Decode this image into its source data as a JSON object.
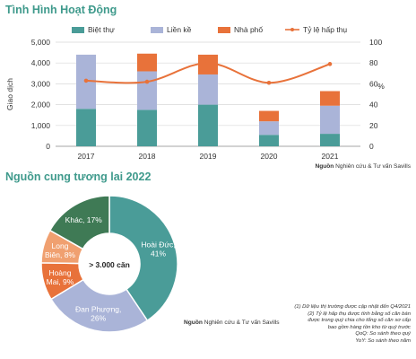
{
  "section1": {
    "title": "Tình Hình Hoạt Động"
  },
  "section2": {
    "title": "Nguồn cung tương lai 2022"
  },
  "chart_data": [
    {
      "type": "bar",
      "stacked": true,
      "categories": [
        "2017",
        "2018",
        "2019",
        "2020",
        "2021"
      ],
      "series": [
        {
          "name": "Biệt thự",
          "color": "#4a9c98",
          "values": [
            1800,
            1750,
            2000,
            550,
            600
          ]
        },
        {
          "name": "Liền kề",
          "color": "#aab4d8",
          "values": [
            2600,
            1850,
            1450,
            650,
            1350
          ]
        },
        {
          "name": "Nhà phố",
          "color": "#e8723a",
          "values": [
            0,
            850,
            950,
            500,
            700
          ]
        }
      ],
      "line_series": {
        "name": "Tỷ lệ hấp thụ",
        "color": "#e8723a",
        "values": [
          63,
          62,
          80,
          61,
          79
        ]
      },
      "ylabel": "Giao dịch",
      "y2label": "%",
      "ylim": [
        0,
        5000
      ],
      "y2lim": [
        0,
        100
      ],
      "yticks": [
        "0",
        "1,000",
        "2,000",
        "3,000",
        "4,000",
        "5,000"
      ],
      "y2ticks": [
        "0",
        "20",
        "40",
        "60",
        "80",
        "100"
      ],
      "legend_position": "top",
      "source_bold": "Nguồn",
      "source_text": " Nghiên cứu & Tư vấn Savills"
    },
    {
      "type": "pie",
      "donut": true,
      "center_label": "> 3.000 căn",
      "slices": [
        {
          "name": "Hoài Đức",
          "value": 41,
          "label_line1": "Hoài Đức,",
          "label_line2": "41%",
          "color": "#4a9c98",
          "text_color": "#ffffff"
        },
        {
          "name": "Đan Phượng",
          "value": 26,
          "label_line1": "Đan Phượng,",
          "label_line2": "26%",
          "color": "#aab4d8",
          "text_color": "#ffffff"
        },
        {
          "name": "Hoàng Mai",
          "value": 9,
          "label_line1": "Hoàng",
          "label_line2": "Mai, 9%",
          "color": "#e8723a",
          "text_color": "#ffffff"
        },
        {
          "name": "Long Biên",
          "value": 8,
          "label_line1": "Long",
          "label_line2": "Biên, 8%",
          "color": "#f0a070",
          "text_color": "#ffffff"
        },
        {
          "name": "Khác",
          "value": 17,
          "label_line1": "Khác, 17%",
          "label_line2": "",
          "color": "#3f7a55",
          "text_color": "#ffffff"
        }
      ],
      "source_bold": "Nguồn",
      "source_text": " Nghiên cứu & Tư vấn Savills"
    }
  ],
  "notes": [
    "(1)  Dữ liệu thị trường được cập nhật đến Q4/2021",
    "(2)  Tỷ lệ hấp thụ được tính bằng số căn bán",
    "được trong quý chia cho tổng số căn sơ cấp",
    "bao gồm hàng tồn kho từ quý trước",
    "QoQ: So sánh theo quý",
    "YoY: So sánh theo năm"
  ]
}
